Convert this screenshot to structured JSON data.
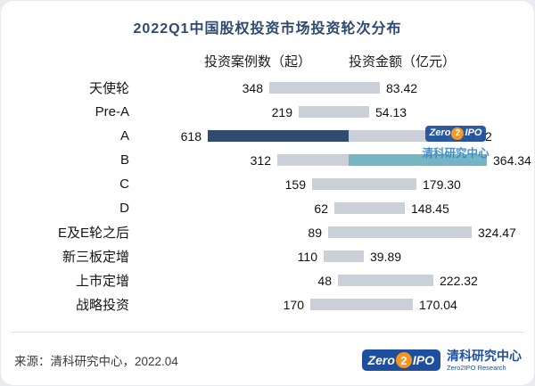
{
  "page": {
    "title": "2022Q1中国股权投资市场投资轮次分布",
    "col_left_header": "投资案例数（起）",
    "col_right_header": "投资金额（亿元）",
    "footer_source": "来源：清科研究中心，2022.04"
  },
  "logo": {
    "zero": "Zero",
    "two": "2",
    "ipo": "IPO",
    "org_cn": "清科研究中心",
    "org_en": "Zero2IPO Research"
  },
  "colors": {
    "title": "#2d4a6e",
    "bar_gray": "#cbd0d8",
    "bar_dark_highlight": "#2f4b70",
    "bar_teal_highlight": "#75b6c3",
    "logo_blue": "#1d4f9e",
    "logo_orange": "#f7941d"
  },
  "chart_data": {
    "type": "bar",
    "subtype": "horizontal-tornado",
    "title": "2022Q1中国股权投资市场投资轮次分布",
    "categories": [
      "天使轮",
      "Pre-A",
      "A",
      "B",
      "C",
      "D",
      "E及E轮之后",
      "新三板定增",
      "上市定增",
      "战略投资"
    ],
    "series": [
      {
        "name": "投资案例数（起）",
        "side": "left",
        "values": [
          348,
          219,
          618,
          312,
          159,
          62,
          89,
          110,
          48,
          170
        ]
      },
      {
        "name": "投资金额（亿元）",
        "side": "right",
        "values": [
          83.42,
          54.13,
          260.32,
          364.34,
          179.3,
          148.45,
          324.47,
          39.89,
          222.32,
          170.04
        ]
      }
    ],
    "value_labels": "at-bar-ends",
    "grid": false,
    "legend": "column-headers-above",
    "highlights": {
      "left_max_category": "A",
      "right_max_category": "B"
    }
  }
}
